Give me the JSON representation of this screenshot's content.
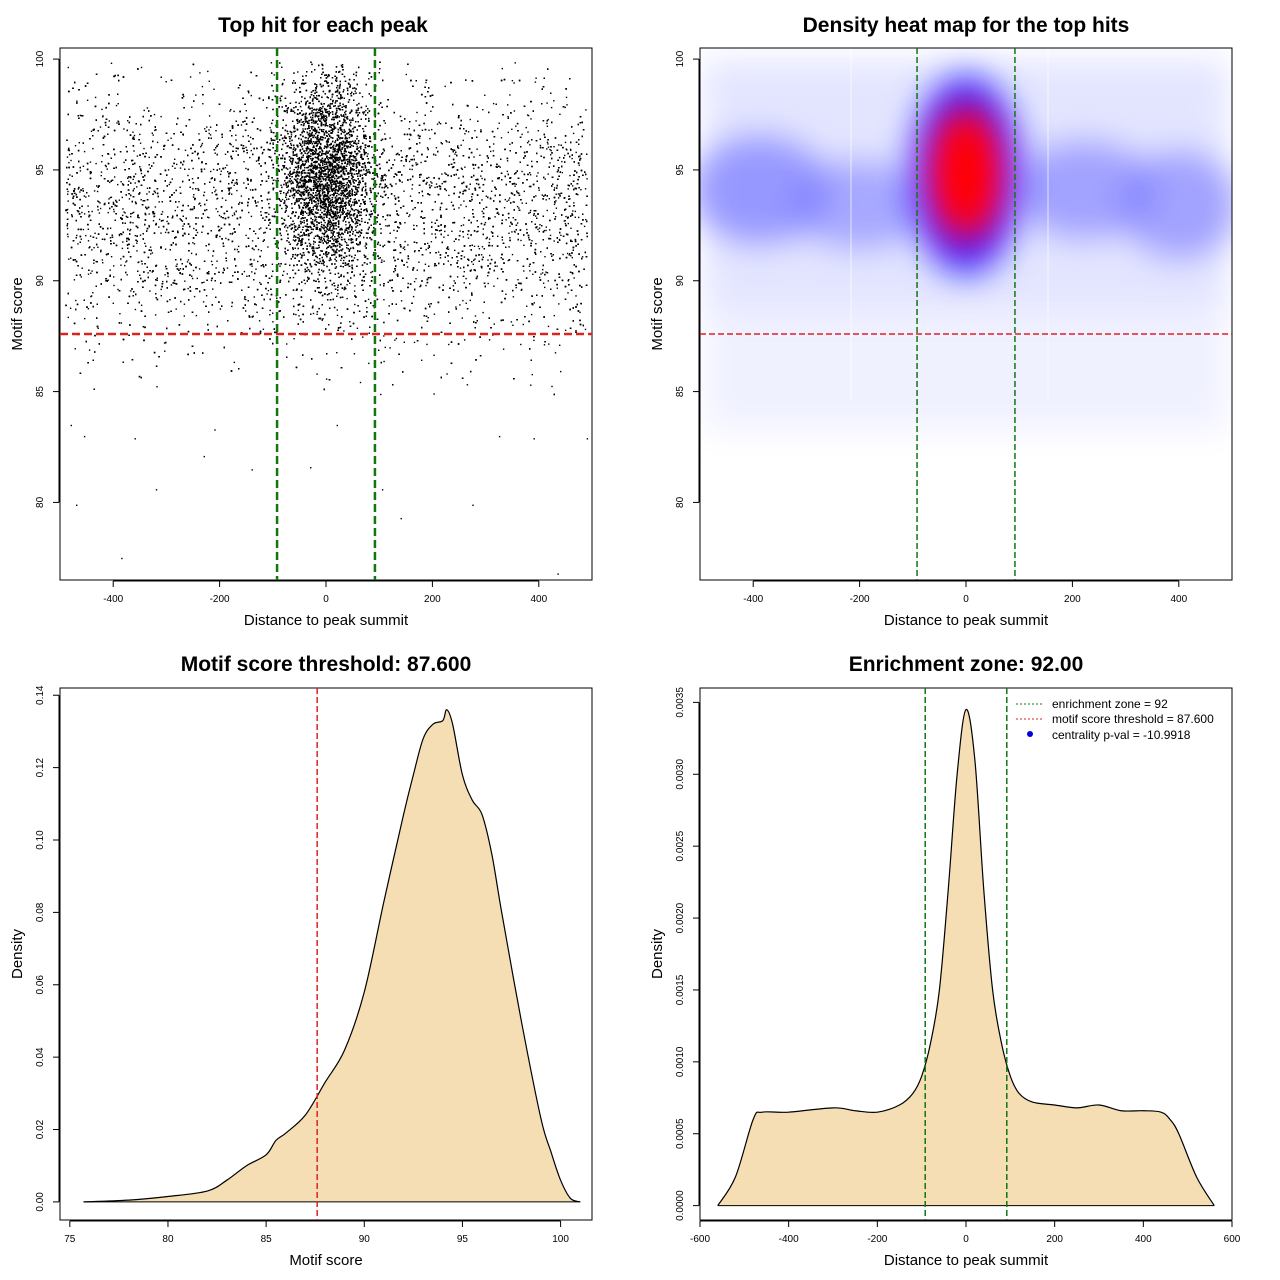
{
  "chart_data": [
    {
      "type": "scatter",
      "title": "Top hit for each peak",
      "xlabel": "Distance to peak summit",
      "ylabel": "Motif score",
      "xlim": [
        -500,
        500
      ],
      "ylim": [
        76.5,
        100.5
      ],
      "xticks": [
        -400,
        -200,
        0,
        200,
        400
      ],
      "yticks": [
        80,
        85,
        90,
        95,
        100
      ],
      "hlines": [
        {
          "y": 87.6,
          "color": "#dd2222"
        }
      ],
      "vlines": [
        {
          "x": -92,
          "color": "#117711"
        },
        {
          "x": 92,
          "color": "#117711"
        }
      ],
      "grid": false,
      "sample_points": [
        [
          -470,
          79.9
        ],
        [
          -385,
          77.5
        ],
        [
          -320,
          80.6
        ],
        [
          -230,
          82.1
        ],
        [
          -140,
          81.5
        ],
        [
          -30,
          81.6
        ],
        [
          105,
          80.6
        ],
        [
          140,
          79.3
        ],
        [
          275,
          79.9
        ],
        [
          435,
          76.8
        ],
        [
          -480,
          83.5
        ],
        [
          -455,
          83.0
        ],
        [
          -360,
          82.9
        ],
        [
          -210,
          83.3
        ],
        [
          20,
          83.5
        ],
        [
          325,
          83.0
        ],
        [
          390,
          82.9
        ],
        [
          490,
          82.9
        ]
      ]
    },
    {
      "type": "heatmap",
      "title": "Density heat map for the top hits",
      "xlabel": "Distance to peak summit",
      "ylabel": "Motif score",
      "xlim": [
        -500,
        500
      ],
      "ylim": [
        76.5,
        100.5
      ],
      "xticks": [
        -400,
        -200,
        0,
        200,
        400
      ],
      "yticks": [
        80,
        85,
        90,
        95,
        100
      ],
      "colors": [
        "#ffffff",
        "#0000ff",
        "#ff0000"
      ],
      "hlines": [
        {
          "y": 87.6,
          "color": "#dd2222"
        }
      ],
      "vlines": [
        {
          "x": -92,
          "color": "#117711"
        },
        {
          "x": 92,
          "color": "#117711"
        }
      ],
      "grid": false
    },
    {
      "type": "area",
      "title": "Motif score threshold: 87.600",
      "xlabel": "Motif score",
      "ylabel": "Density",
      "xlim": [
        74.5,
        101.6
      ],
      "ylim": [
        -0.005,
        0.142
      ],
      "xticks": [
        75,
        80,
        85,
        90,
        95,
        100
      ],
      "yticks": [
        0.0,
        0.02,
        0.04,
        0.06,
        0.08,
        0.1,
        0.12,
        0.14
      ],
      "ytick_labels": [
        "0.00",
        "0.02",
        "0.04",
        "0.06",
        "0.08",
        "0.10",
        "0.12",
        "0.14"
      ],
      "fill": "#f5deb3",
      "vlines": [
        {
          "x": 87.6,
          "color": "#dd2222"
        }
      ],
      "x": [
        75.7,
        78,
        80,
        82,
        83,
        84,
        85,
        85.5,
        86,
        87,
        88,
        89,
        90,
        91,
        92,
        92.5,
        93,
        93.5,
        94,
        94.2,
        94.5,
        95,
        95.5,
        96,
        96.5,
        97,
        98,
        99,
        99.5,
        100,
        100.5,
        101
      ],
      "y": [
        0.0,
        0.0005,
        0.0015,
        0.003,
        0.006,
        0.01,
        0.013,
        0.017,
        0.019,
        0.024,
        0.033,
        0.042,
        0.058,
        0.083,
        0.107,
        0.118,
        0.128,
        0.132,
        0.133,
        0.136,
        0.132,
        0.118,
        0.111,
        0.107,
        0.096,
        0.08,
        0.05,
        0.023,
        0.014,
        0.006,
        0.001,
        0.0
      ]
    },
    {
      "type": "area",
      "title": "Enrichment zone: 92.00",
      "xlabel": "Distance to peak summit",
      "ylabel": "Density",
      "xlim": [
        -600,
        600
      ],
      "ylim": [
        -0.0001,
        0.0036
      ],
      "xticks": [
        -600,
        -400,
        -200,
        0,
        200,
        400,
        600
      ],
      "yticks": [
        0.0,
        0.0005,
        0.001,
        0.0015,
        0.002,
        0.0025,
        0.003,
        0.0035
      ],
      "ytick_labels": [
        "0.0000",
        "0.0005",
        "0.0010",
        "0.0015",
        "0.0020",
        "0.0025",
        "0.0030",
        "0.0035"
      ],
      "fill": "#f5deb3",
      "vlines": [
        {
          "x": -92,
          "color": "#117711"
        },
        {
          "x": 92,
          "color": "#117711"
        }
      ],
      "x": [
        -560,
        -520,
        -480,
        -460,
        -400,
        -300,
        -250,
        -200,
        -150,
        -120,
        -100,
        -80,
        -60,
        -40,
        -20,
        0,
        20,
        40,
        60,
        80,
        100,
        120,
        150,
        200,
        250,
        300,
        350,
        400,
        440,
        460,
        480,
        520,
        560
      ],
      "y": [
        0.0,
        0.0002,
        0.0006,
        0.00065,
        0.00065,
        0.00068,
        0.00066,
        0.00065,
        0.0007,
        0.00078,
        0.0009,
        0.00113,
        0.0015,
        0.0022,
        0.003,
        0.00345,
        0.0031,
        0.0022,
        0.0015,
        0.00113,
        0.0009,
        0.00078,
        0.00072,
        0.0007,
        0.00068,
        0.0007,
        0.00066,
        0.00066,
        0.00065,
        0.0006,
        0.0005,
        0.0002,
        0.0
      ],
      "legend": [
        {
          "label": "enrichment zone = 92",
          "color": "#117711",
          "style": "dotted-line"
        },
        {
          "label": "motif score threshold = 87.600",
          "color": "#dd2222",
          "style": "dotted-line"
        },
        {
          "label": "centrality p-val = -10.9918",
          "color": "#0000dd",
          "style": "point"
        }
      ],
      "legend_position": "top-right"
    }
  ]
}
